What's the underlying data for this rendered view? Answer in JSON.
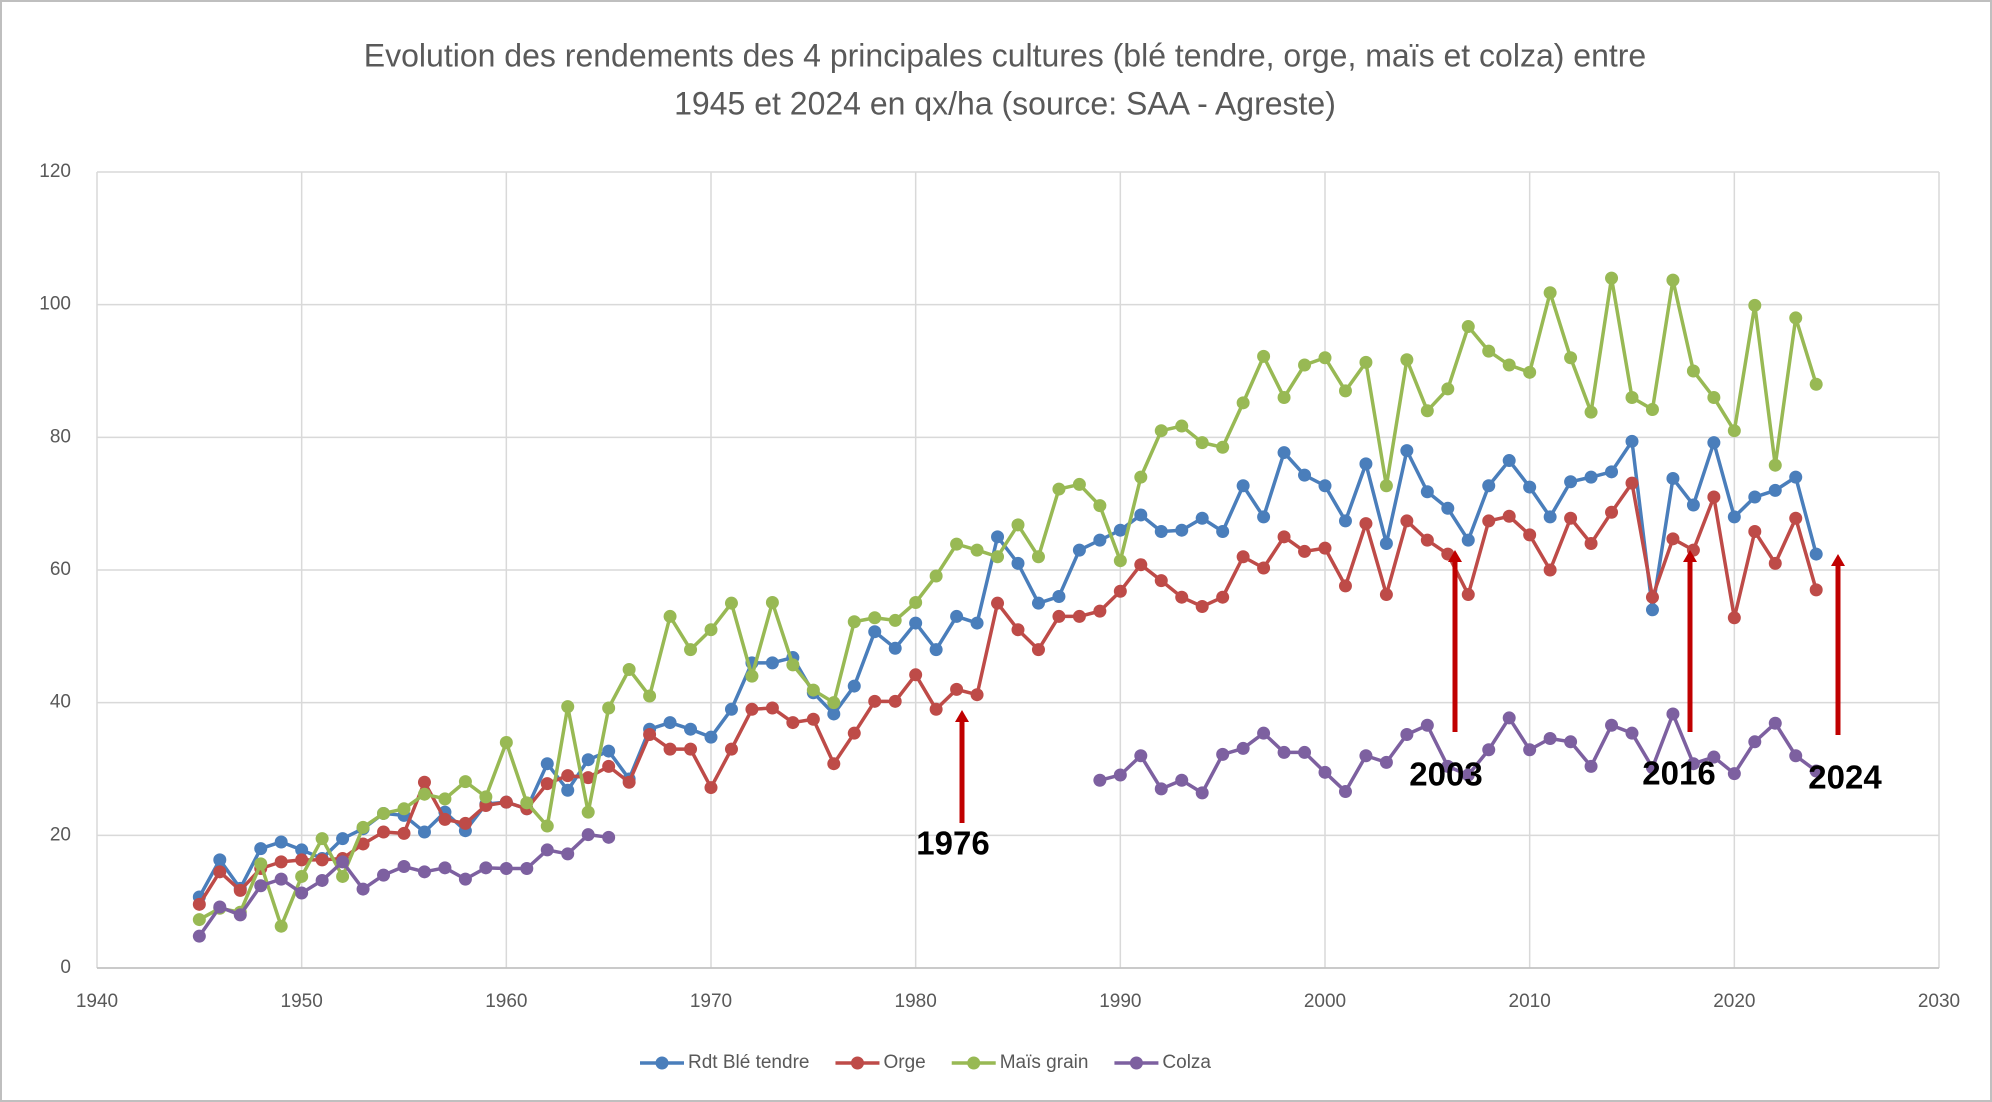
{
  "chart_data": {
    "type": "line",
    "title": [
      "Evolution des rendements des 4 principales cultures (blé tendre, orge, maïs et colza) entre",
      "1945 et 2024  en qx/ha (source: SAA - Agreste)"
    ],
    "x": [
      1945,
      1946,
      1947,
      1948,
      1949,
      1950,
      1951,
      1952,
      1953,
      1954,
      1955,
      1956,
      1957,
      1958,
      1959,
      1960,
      1961,
      1962,
      1963,
      1964,
      1965,
      1966,
      1967,
      1968,
      1969,
      1970,
      1971,
      1972,
      1973,
      1974,
      1975,
      1976,
      1977,
      1978,
      1979,
      1980,
      1981,
      1982,
      1983,
      1984,
      1985,
      1986,
      1987,
      1988,
      1989,
      1990,
      1991,
      1992,
      1993,
      1994,
      1995,
      1996,
      1997,
      1998,
      1999,
      2000,
      2001,
      2002,
      2003,
      2004,
      2005,
      2006,
      2007,
      2008,
      2009,
      2010,
      2011,
      2012,
      2013,
      2014,
      2015,
      2016,
      2017,
      2018,
      2019,
      2020,
      2021,
      2022,
      2023,
      2024
    ],
    "series": [
      {
        "name": "Rdt Blé tendre",
        "color": "#4a7ebb",
        "values": [
          10.7,
          16.3,
          12,
          18,
          19,
          17.8,
          16.5,
          19.5,
          21,
          23.3,
          23,
          20.5,
          23.5,
          20.7,
          24.7,
          25,
          24,
          30.8,
          26.8,
          31.4,
          32.7,
          28.5,
          36,
          37,
          36,
          34.8,
          39,
          46,
          46,
          46.8,
          41.5,
          38.3,
          42.5,
          50.7,
          48.2,
          52,
          48,
          53,
          52,
          65,
          61,
          55,
          56,
          63,
          64.5,
          66,
          68.3,
          65.8,
          66,
          67.8,
          65.8,
          72.7,
          68,
          77.7,
          74.3,
          72.7,
          67.4,
          76,
          64,
          78,
          71.8,
          69.3,
          64.5,
          72.7,
          76.5,
          72.5,
          68,
          73.3,
          74,
          74.8,
          79.4,
          54,
          73.8,
          69.8,
          79.2,
          68,
          71,
          72,
          74,
          62.4
        ]
      },
      {
        "name": "Orge",
        "color": "#be4b48",
        "values": [
          9.6,
          14.5,
          11.7,
          15,
          16,
          16.3,
          16.3,
          16.5,
          18.7,
          20.5,
          20.3,
          28,
          22.4,
          21.8,
          24.5,
          25,
          24,
          27.8,
          29,
          28.7,
          30.4,
          28,
          35.2,
          33,
          33,
          27.2,
          33,
          39,
          39.2,
          37,
          37.5,
          30.8,
          35.4,
          40.2,
          40.2,
          44.2,
          39,
          42,
          41.2,
          55,
          51,
          48,
          53,
          53,
          53.8,
          56.8,
          60.8,
          58.4,
          55.9,
          54.5,
          55.9,
          62,
          60.3,
          65,
          62.8,
          63.3,
          57.6,
          67,
          56.3,
          67.4,
          64.5,
          62.4,
          56.3,
          67.4,
          68.1,
          65.3,
          60,
          67.8,
          64,
          68.7,
          73.1,
          55.9,
          64.7,
          63,
          71,
          52.8,
          65.8,
          61,
          67.8,
          57
        ]
      },
      {
        "name": "Maïs grain",
        "color": "#98b954",
        "values": [
          7.3,
          9,
          8.4,
          15.7,
          6.3,
          13.8,
          19.5,
          13.8,
          21.2,
          23.3,
          24,
          26.2,
          25.5,
          28.1,
          25.8,
          34,
          24.9,
          21.4,
          39.4,
          23.5,
          39.2,
          45,
          41,
          53,
          48,
          51,
          55,
          44,
          55.1,
          45.7,
          41.9,
          40,
          52.2,
          52.8,
          52.4,
          55.1,
          59.1,
          63.9,
          63,
          62,
          66.8,
          62,
          72.2,
          72.9,
          69.7,
          61.4,
          74,
          81,
          81.7,
          79.2,
          78.5,
          85.2,
          92.2,
          86,
          90.9,
          92,
          87,
          91.3,
          72.7,
          91.7,
          84,
          87.3,
          96.7,
          93,
          90.9,
          89.8,
          101.8,
          92,
          83.8,
          104,
          86,
          84.2,
          103.7,
          90,
          86,
          81,
          99.9,
          75.8,
          98,
          88
        ]
      },
      {
        "name": "Colza",
        "color": "#7d60a0",
        "values": [
          4.8,
          9.2,
          8,
          12.4,
          13.4,
          11.3,
          13.2,
          16,
          11.9,
          14,
          15.3,
          14.5,
          15.1,
          13.4,
          15.1,
          15,
          15,
          17.8,
          17.2,
          20.1,
          19.7,
          null,
          null,
          null,
          null,
          null,
          null,
          null,
          null,
          null,
          null,
          null,
          null,
          null,
          null,
          null,
          null,
          null,
          null,
          null,
          null,
          null,
          null,
          null,
          28.3,
          29.1,
          32,
          27,
          28.3,
          26.4,
          32.2,
          33.1,
          35.4,
          32.5,
          32.5,
          29.5,
          26.6,
          32,
          31,
          35.2,
          36.6,
          30.4,
          29.1,
          32.9,
          37.7,
          32.9,
          34.6,
          34.1,
          30.4,
          36.6,
          35.4,
          30.2,
          38.3,
          30.8,
          31.8,
          29.3,
          34.1,
          36.9,
          32,
          29.7
        ]
      }
    ],
    "xlim": [
      1940,
      2030
    ],
    "xticks": [
      1940,
      1950,
      1960,
      1970,
      1980,
      1990,
      2000,
      2010,
      2020,
      2030
    ],
    "ylim": [
      0,
      120
    ],
    "yticks": [
      0,
      20,
      40,
      60,
      80,
      100,
      120
    ],
    "grid": true,
    "legend": "bottom",
    "annotations": [
      "1976",
      "2003",
      "2016",
      "2024"
    ]
  }
}
